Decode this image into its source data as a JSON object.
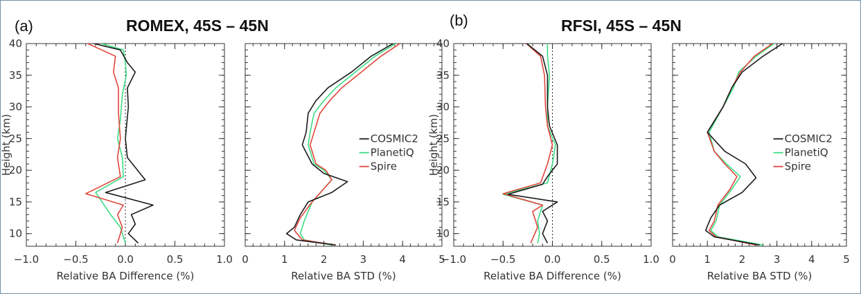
{
  "colors": {
    "COSMIC2": "#1a1a1a",
    "PlanetiQ": "#3ddc84",
    "Spire": "#e0453a",
    "frame": "#6f8fa8",
    "axis": "#333333"
  },
  "panels": [
    {
      "letter": "(a)",
      "title": "ROMEX, 45S – 45N"
    },
    {
      "letter": "(b)",
      "title": "RFSI, 45S – 45N"
    }
  ],
  "chart_data": [
    {
      "type": "line",
      "panel": "(a)",
      "title": "ROMEX, 45S – 45N",
      "xlabel": "Relative BA Difference (%)",
      "ylabel": "Height (km)",
      "xlim": [
        -1.0,
        1.0
      ],
      "ylim": [
        8,
        40
      ],
      "xticks": [
        "−1.0",
        "−0.5",
        "0.0",
        "0.5",
        "1.0"
      ],
      "xtick_values": [
        -1.0,
        -0.5,
        0.0,
        0.5,
        1.0
      ],
      "yticks": [
        "10",
        "15",
        "20",
        "25",
        "30",
        "35",
        "40"
      ],
      "ytick_values": [
        10,
        15,
        20,
        25,
        30,
        35,
        40
      ],
      "reference_line_x": 0.0,
      "legend": [],
      "series": [
        {
          "name": "COSMIC2",
          "points": [
            [
              -0.45,
              40.5
            ],
            [
              -0.05,
              39
            ],
            [
              0.02,
              37
            ],
            [
              0.1,
              35.5
            ],
            [
              0.02,
              33
            ],
            [
              0.03,
              30
            ],
            [
              0.0,
              25
            ],
            [
              0.02,
              22
            ],
            [
              0.2,
              18.5
            ],
            [
              -0.2,
              16.5
            ],
            [
              0.28,
              14.5
            ],
            [
              0.06,
              13
            ],
            [
              0.1,
              11.5
            ],
            [
              0.03,
              10
            ],
            [
              0.13,
              8.5
            ]
          ]
        },
        {
          "name": "PlanetiQ",
          "points": [
            [
              -0.35,
              40.5
            ],
            [
              -0.02,
              39
            ],
            [
              0.0,
              37
            ],
            [
              0.01,
              35
            ],
            [
              -0.03,
              32
            ],
            [
              -0.05,
              28
            ],
            [
              -0.08,
              25
            ],
            [
              -0.03,
              22
            ],
            [
              -0.02,
              19
            ],
            [
              -0.3,
              16.5
            ],
            [
              -0.15,
              13
            ],
            [
              -0.05,
              11
            ],
            [
              0.0,
              8.5
            ]
          ]
        },
        {
          "name": "Spire",
          "points": [
            [
              -0.45,
              40.5
            ],
            [
              -0.1,
              38
            ],
            [
              -0.12,
              35.5
            ],
            [
              -0.07,
              33
            ],
            [
              -0.07,
              29
            ],
            [
              -0.05,
              25
            ],
            [
              -0.08,
              22
            ],
            [
              -0.05,
              19
            ],
            [
              -0.4,
              16.3
            ],
            [
              -0.02,
              14.5
            ],
            [
              -0.08,
              13
            ],
            [
              -0.03,
              11
            ],
            [
              -0.08,
              8.5
            ]
          ]
        }
      ]
    },
    {
      "type": "line",
      "panel": "(a)",
      "xlabel": "Relative BA STD (%)",
      "xlim": [
        0,
        5
      ],
      "ylim": [
        8,
        40
      ],
      "xticks": [
        "0",
        "1",
        "2",
        "3",
        "4",
        "5"
      ],
      "xtick_values": [
        0,
        1,
        2,
        3,
        4,
        5
      ],
      "yticks": [],
      "ytick_values": [
        10,
        15,
        20,
        25,
        30,
        35,
        40
      ],
      "legend": [
        "COSMIC2",
        "PlanetiQ",
        "Spire"
      ],
      "series": [
        {
          "name": "COSMIC2",
          "points": [
            [
              3.9,
              40.5
            ],
            [
              3.2,
              38
            ],
            [
              2.7,
              35.5
            ],
            [
              2.1,
              33
            ],
            [
              1.8,
              31
            ],
            [
              1.6,
              29
            ],
            [
              1.55,
              26
            ],
            [
              1.45,
              24
            ],
            [
              1.7,
              21
            ],
            [
              2.0,
              19.5
            ],
            [
              2.6,
              18.2
            ],
            [
              2.2,
              16.5
            ],
            [
              1.6,
              15
            ],
            [
              1.4,
              13
            ],
            [
              1.25,
              11
            ],
            [
              1.05,
              10
            ],
            [
              1.3,
              9
            ],
            [
              2.3,
              8.2
            ]
          ]
        },
        {
          "name": "PlanetiQ",
          "points": [
            [
              3.95,
              40.5
            ],
            [
              3.3,
              38
            ],
            [
              2.8,
              35.5
            ],
            [
              2.3,
              33
            ],
            [
              2.0,
              31
            ],
            [
              1.75,
              29
            ],
            [
              1.65,
              26
            ],
            [
              1.6,
              24
            ],
            [
              1.75,
              21
            ],
            [
              2.0,
              20
            ],
            [
              2.2,
              18.5
            ],
            [
              1.7,
              15
            ],
            [
              1.5,
              12
            ],
            [
              1.4,
              10
            ],
            [
              1.5,
              9
            ],
            [
              2.2,
              8.2
            ]
          ]
        },
        {
          "name": "Spire",
          "points": [
            [
              4.05,
              40.5
            ],
            [
              3.45,
              38
            ],
            [
              2.95,
              35.5
            ],
            [
              2.45,
              33
            ],
            [
              2.15,
              31
            ],
            [
              1.9,
              29
            ],
            [
              1.75,
              26
            ],
            [
              1.65,
              24
            ],
            [
              1.8,
              21
            ],
            [
              2.05,
              20
            ],
            [
              2.2,
              18.5
            ],
            [
              1.7,
              15
            ],
            [
              1.4,
              12.5
            ],
            [
              1.25,
              10.5
            ],
            [
              1.45,
              9
            ],
            [
              2.3,
              8.2
            ]
          ]
        }
      ]
    },
    {
      "type": "line",
      "panel": "(b)",
      "title": "RFSI, 45S – 45N",
      "xlabel": "Relative BA Difference (%)",
      "ylabel": "Height (km)",
      "xlim": [
        -1.0,
        1.0
      ],
      "ylim": [
        8,
        40
      ],
      "xticks": [
        "−1.0",
        "−0.5",
        "0.0",
        "0.5",
        "1.0"
      ],
      "xtick_values": [
        -1.0,
        -0.5,
        0.0,
        0.5,
        1.0
      ],
      "yticks": [
        "10",
        "15",
        "20",
        "25",
        "30",
        "35",
        "40"
      ],
      "ytick_values": [
        10,
        15,
        20,
        25,
        30,
        35,
        40
      ],
      "reference_line_x": 0.0,
      "legend": [],
      "series": [
        {
          "name": "COSMIC2",
          "points": [
            [
              -0.3,
              40.5
            ],
            [
              -0.1,
              38
            ],
            [
              -0.05,
              35
            ],
            [
              -0.05,
              30
            ],
            [
              -0.03,
              27
            ],
            [
              0.05,
              24
            ],
            [
              0.05,
              21
            ],
            [
              -0.05,
              19
            ],
            [
              -0.1,
              17.8
            ],
            [
              -0.45,
              16.2
            ],
            [
              0.05,
              15
            ],
            [
              -0.1,
              13.5
            ],
            [
              -0.05,
              12
            ],
            [
              -0.1,
              10
            ],
            [
              -0.05,
              8.5
            ]
          ]
        },
        {
          "name": "PlanetiQ",
          "points": [
            [
              -0.05,
              40.5
            ],
            [
              -0.05,
              38
            ],
            [
              -0.03,
              35
            ],
            [
              -0.05,
              30
            ],
            [
              -0.05,
              27
            ],
            [
              0.03,
              24
            ],
            [
              0.0,
              21
            ],
            [
              -0.05,
              18
            ],
            [
              -0.5,
              16.2
            ],
            [
              -0.1,
              14.5
            ],
            [
              -0.15,
              12
            ],
            [
              -0.13,
              10
            ],
            [
              -0.15,
              8.5
            ]
          ]
        },
        {
          "name": "Spire",
          "points": [
            [
              -0.3,
              40.5
            ],
            [
              -0.12,
              38
            ],
            [
              -0.08,
              35
            ],
            [
              -0.07,
              30
            ],
            [
              -0.05,
              27
            ],
            [
              0.0,
              24
            ],
            [
              -0.05,
              21
            ],
            [
              -0.12,
              18
            ],
            [
              -0.5,
              16.3
            ],
            [
              -0.1,
              14.5
            ],
            [
              -0.2,
              13.5
            ],
            [
              -0.15,
              11
            ],
            [
              -0.22,
              8.5
            ]
          ]
        }
      ]
    },
    {
      "type": "line",
      "panel": "(b)",
      "xlabel": "Relative BA STD (%)",
      "xlim": [
        0,
        5
      ],
      "ylim": [
        8,
        40
      ],
      "xticks": [
        "0",
        "1",
        "2",
        "3",
        "4",
        "5"
      ],
      "xtick_values": [
        0,
        1,
        2,
        3,
        4,
        5
      ],
      "yticks": [],
      "ytick_values": [
        10,
        15,
        20,
        25,
        30,
        35,
        40
      ],
      "legend": [
        "COSMIC2",
        "PlanetiQ",
        "Spire"
      ],
      "series": [
        {
          "name": "COSMIC2",
          "points": [
            [
              3.3,
              40.5
            ],
            [
              2.6,
              38
            ],
            [
              2.0,
              35.5
            ],
            [
              1.7,
              33
            ],
            [
              1.45,
              30
            ],
            [
              1.0,
              26
            ],
            [
              1.5,
              23
            ],
            [
              2.1,
              21
            ],
            [
              2.4,
              18.8
            ],
            [
              2.0,
              16.5
            ],
            [
              1.35,
              14.5
            ],
            [
              1.1,
              12.5
            ],
            [
              0.95,
              10.5
            ],
            [
              1.2,
              9.5
            ],
            [
              2.5,
              8.2
            ]
          ]
        },
        {
          "name": "PlanetiQ",
          "points": [
            [
              3.05,
              40.5
            ],
            [
              2.4,
              38
            ],
            [
              1.9,
              35.5
            ],
            [
              1.75,
              33
            ],
            [
              1.45,
              30
            ],
            [
              1.05,
              26
            ],
            [
              1.2,
              23
            ],
            [
              1.55,
              21
            ],
            [
              1.95,
              19
            ],
            [
              1.7,
              17
            ],
            [
              1.35,
              14.5
            ],
            [
              1.25,
              12
            ],
            [
              1.1,
              10.5
            ],
            [
              1.3,
              9.5
            ],
            [
              2.6,
              8.2
            ]
          ]
        },
        {
          "name": "Spire",
          "points": [
            [
              3.0,
              40.5
            ],
            [
              2.35,
              38
            ],
            [
              1.95,
              35.5
            ],
            [
              1.7,
              33
            ],
            [
              1.45,
              30
            ],
            [
              1.0,
              26
            ],
            [
              1.2,
              23
            ],
            [
              1.5,
              21
            ],
            [
              1.85,
              19
            ],
            [
              1.65,
              17
            ],
            [
              1.3,
              14.5
            ],
            [
              1.2,
              12
            ],
            [
              1.05,
              10.5
            ],
            [
              1.25,
              9.5
            ],
            [
              2.4,
              8.2
            ]
          ]
        }
      ]
    }
  ]
}
